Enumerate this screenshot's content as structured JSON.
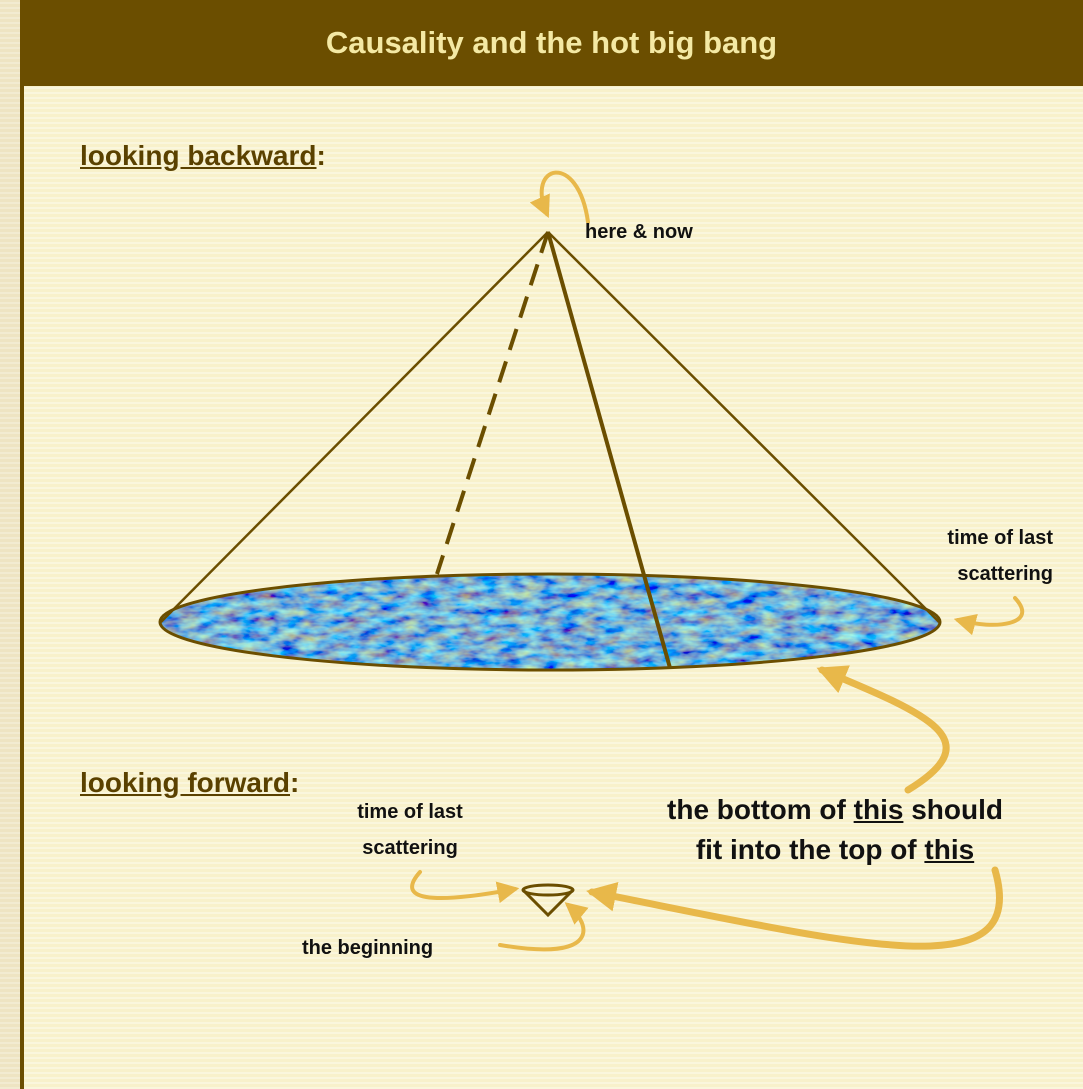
{
  "header": {
    "title": "Causality and the hot big bang"
  },
  "backward": {
    "heading": "looking backward",
    "suffix": ":",
    "apex_label": "here & now",
    "edge_label": [
      "time of last",
      "scattering"
    ]
  },
  "forward": {
    "heading": "looking forward",
    "suffix": ":",
    "callout": [
      [
        "the bottom of ",
        "this",
        " should"
      ],
      [
        "fit into the top of ",
        "this"
      ]
    ],
    "top_label": [
      "time of last",
      "scattering"
    ],
    "bottom_label": "the beginning"
  }
}
